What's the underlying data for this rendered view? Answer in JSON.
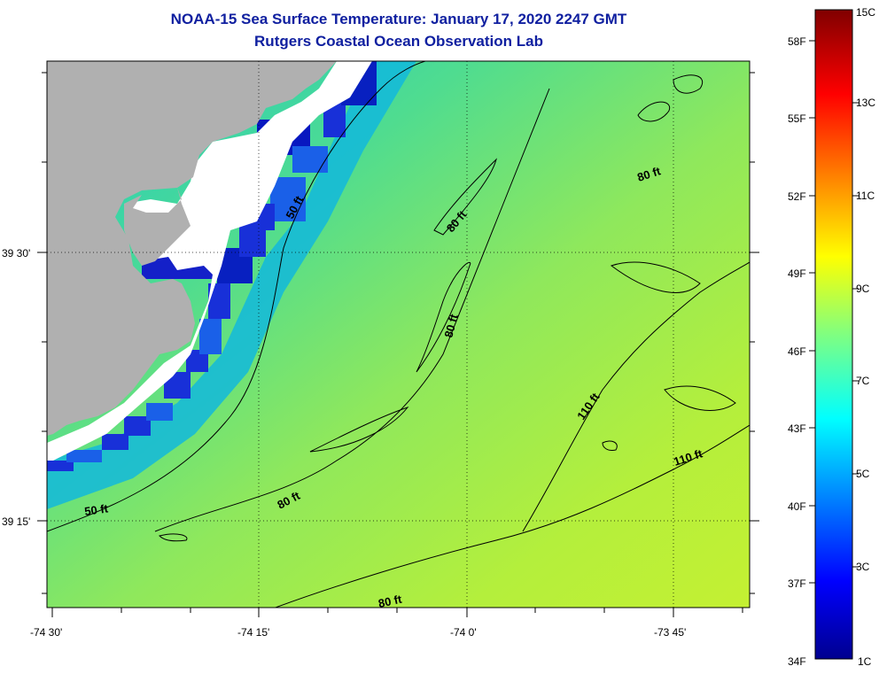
{
  "title": "NOAA-15 Sea Surface Temperature:  January 17, 2020 2247 GMT",
  "subtitle": "Rutgers Coastal Ocean Observation Lab",
  "map": {
    "longitude_labels": [
      "-74 30'",
      "-74 15'",
      "-74 0'",
      "-73 45'"
    ],
    "latitude_labels": [
      "39 30'",
      "39 15'"
    ],
    "contour_labels": [
      "50 ft",
      "50 ft",
      "80 ft",
      "80 ft",
      "80 ft",
      "80 ft",
      "80 ft",
      "110 ft",
      "110 ft"
    ],
    "colors": {
      "land": "#b0b0b0",
      "cloud": "#ffffff",
      "grid": "#000000"
    }
  },
  "colorbar": {
    "celsius_labels": [
      "15C",
      "13C",
      "11C",
      "9C",
      "7C",
      "5C",
      "3C",
      "1C"
    ],
    "fahrenheit_labels": [
      "58F",
      "55F",
      "52F",
      "49F",
      "46F",
      "43F",
      "40F",
      "37F",
      "34F"
    ],
    "colormap": "jet"
  }
}
